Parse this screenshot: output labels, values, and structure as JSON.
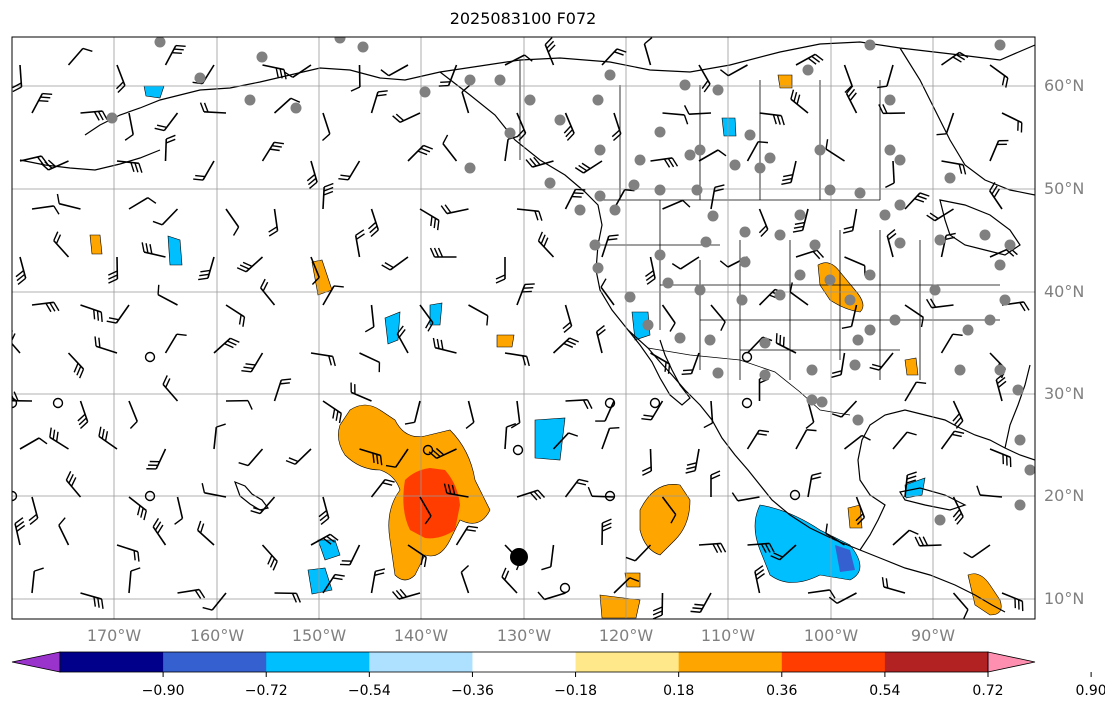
{
  "title": "2025083100 F072",
  "lat_labels": [
    "60°N",
    "50°N",
    "40°N",
    "30°N",
    "20°N",
    "10°N"
  ],
  "lon_labels": [
    "170°W",
    "160°W",
    "150°W",
    "140°W",
    "130°W",
    "120°W",
    "110°W",
    "100°W",
    "90°W"
  ],
  "colorbar": {
    "tick_labels": [
      "−0.90",
      "−0.72",
      "−0.54",
      "−0.36",
      "−0.18",
      "0.18",
      "0.36",
      "0.54",
      "0.72",
      "0.90"
    ],
    "colors": [
      "#9a33cc",
      "#00008b",
      "#3560d0",
      "#00bfff",
      "#aee0ff",
      "#ffffff",
      "#ffe88a",
      "#ffa500",
      "#ff3d00",
      "#b22222",
      "#ff8fb0"
    ]
  },
  "colors": {
    "coast": "#000000",
    "grid": "#999999",
    "label": "#808080",
    "station": "#808080"
  }
}
